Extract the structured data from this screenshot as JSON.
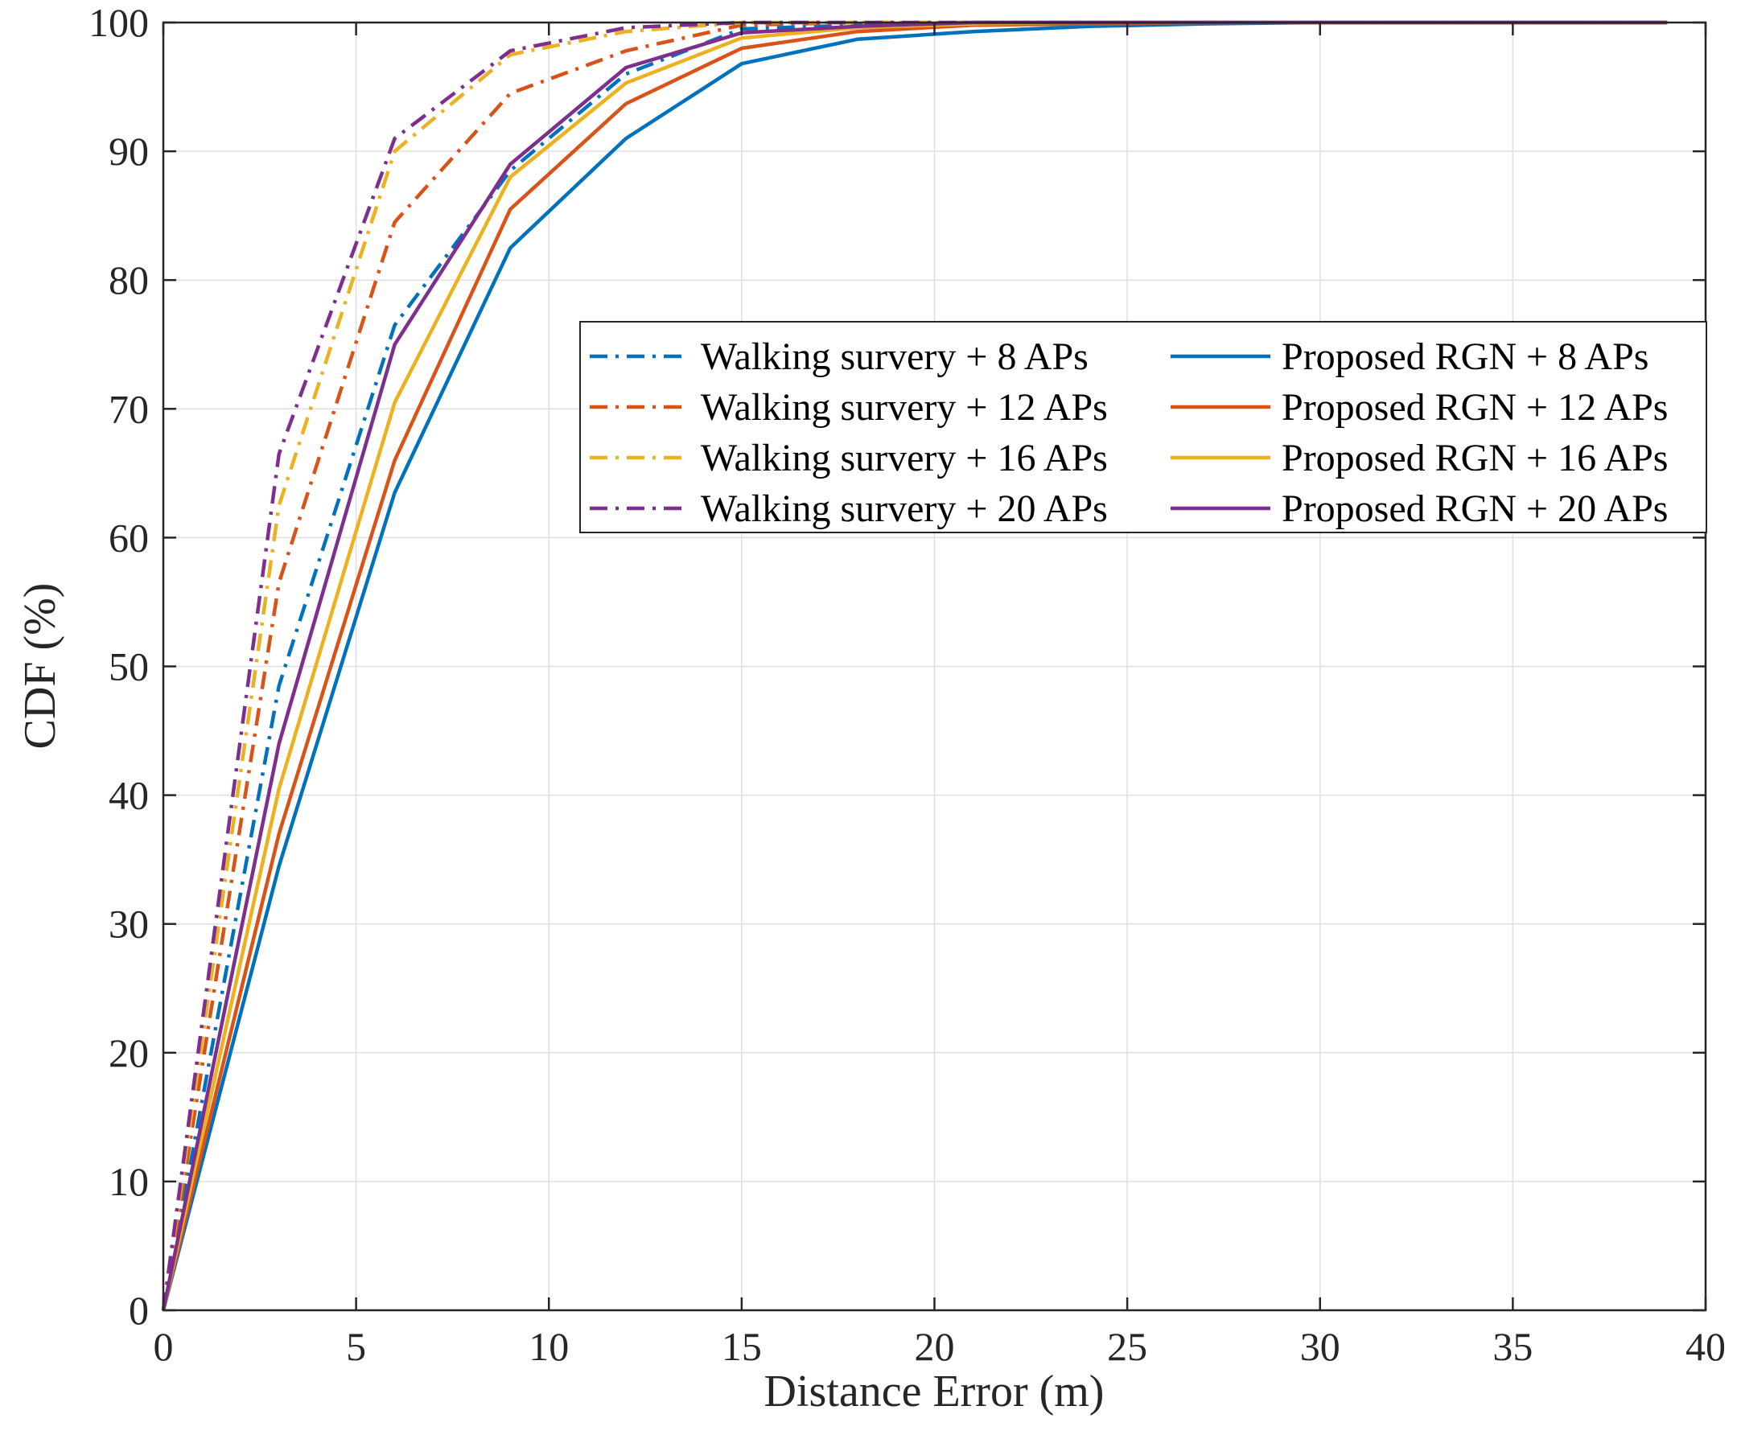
{
  "chart_data": {
    "type": "line",
    "title": "",
    "xlabel": "Distance Error (m)",
    "ylabel": "CDF (%)",
    "xlim": [
      0,
      40
    ],
    "ylim": [
      0,
      100
    ],
    "xticks": [
      0,
      5,
      10,
      15,
      20,
      25,
      30,
      35,
      40
    ],
    "yticks": [
      0,
      10,
      20,
      30,
      40,
      50,
      60,
      70,
      80,
      90,
      100
    ],
    "grid": true,
    "legend_position": "upper-right, two columns",
    "x": [
      0,
      3,
      6,
      9,
      12,
      15,
      18,
      21,
      24,
      27,
      30,
      33,
      36,
      39
    ],
    "series": [
      {
        "name": "Walking survery + 8 APs",
        "style": "dashdot",
        "color": "#0072BD",
        "values": [
          0,
          48.5,
          76.5,
          88.5,
          96.0,
          99.5,
          99.8,
          100,
          100,
          100,
          100,
          100,
          100,
          100
        ]
      },
      {
        "name": "Walking survery + 12 APs",
        "style": "dashdot",
        "color": "#D95319",
        "values": [
          0,
          56.5,
          84.5,
          94.5,
          97.8,
          99.8,
          100,
          100,
          100,
          100,
          100,
          100,
          100,
          100
        ]
      },
      {
        "name": "Walking survery + 16 APs",
        "style": "dashdot",
        "color": "#EDB120",
        "values": [
          0,
          62.5,
          90.0,
          97.5,
          99.3,
          100,
          100,
          100,
          100,
          100,
          100,
          100,
          100,
          100
        ]
      },
      {
        "name": "Walking survery + 20 APs",
        "style": "dashdot",
        "color": "#7E2F8E",
        "values": [
          0,
          66.5,
          91.0,
          97.8,
          99.6,
          100,
          100,
          100,
          100,
          100,
          100,
          100,
          100,
          100
        ]
      },
      {
        "name": "Proposed RGN + 8 APs",
        "style": "solid",
        "color": "#0072BD",
        "values": [
          0,
          34.5,
          63.5,
          82.5,
          91.0,
          96.8,
          98.7,
          99.3,
          99.7,
          99.9,
          100,
          100,
          100,
          100
        ]
      },
      {
        "name": "Proposed RGN + 12 APs",
        "style": "solid",
        "color": "#D95319",
        "values": [
          0,
          37.0,
          66.0,
          85.5,
          93.7,
          98.0,
          99.3,
          99.8,
          99.9,
          100,
          100,
          100,
          100,
          100
        ]
      },
      {
        "name": "Proposed RGN + 16 APs",
        "style": "solid",
        "color": "#EDB120",
        "values": [
          0,
          40.5,
          70.5,
          88.0,
          95.3,
          98.8,
          99.6,
          99.9,
          100,
          100,
          100,
          100,
          100,
          100
        ]
      },
      {
        "name": "Proposed RGN + 20 APs",
        "style": "solid",
        "color": "#7E2F8E",
        "values": [
          0,
          44.0,
          75.0,
          89.0,
          96.5,
          99.2,
          99.7,
          100,
          100,
          100,
          100,
          100,
          100,
          100
        ]
      }
    ]
  }
}
